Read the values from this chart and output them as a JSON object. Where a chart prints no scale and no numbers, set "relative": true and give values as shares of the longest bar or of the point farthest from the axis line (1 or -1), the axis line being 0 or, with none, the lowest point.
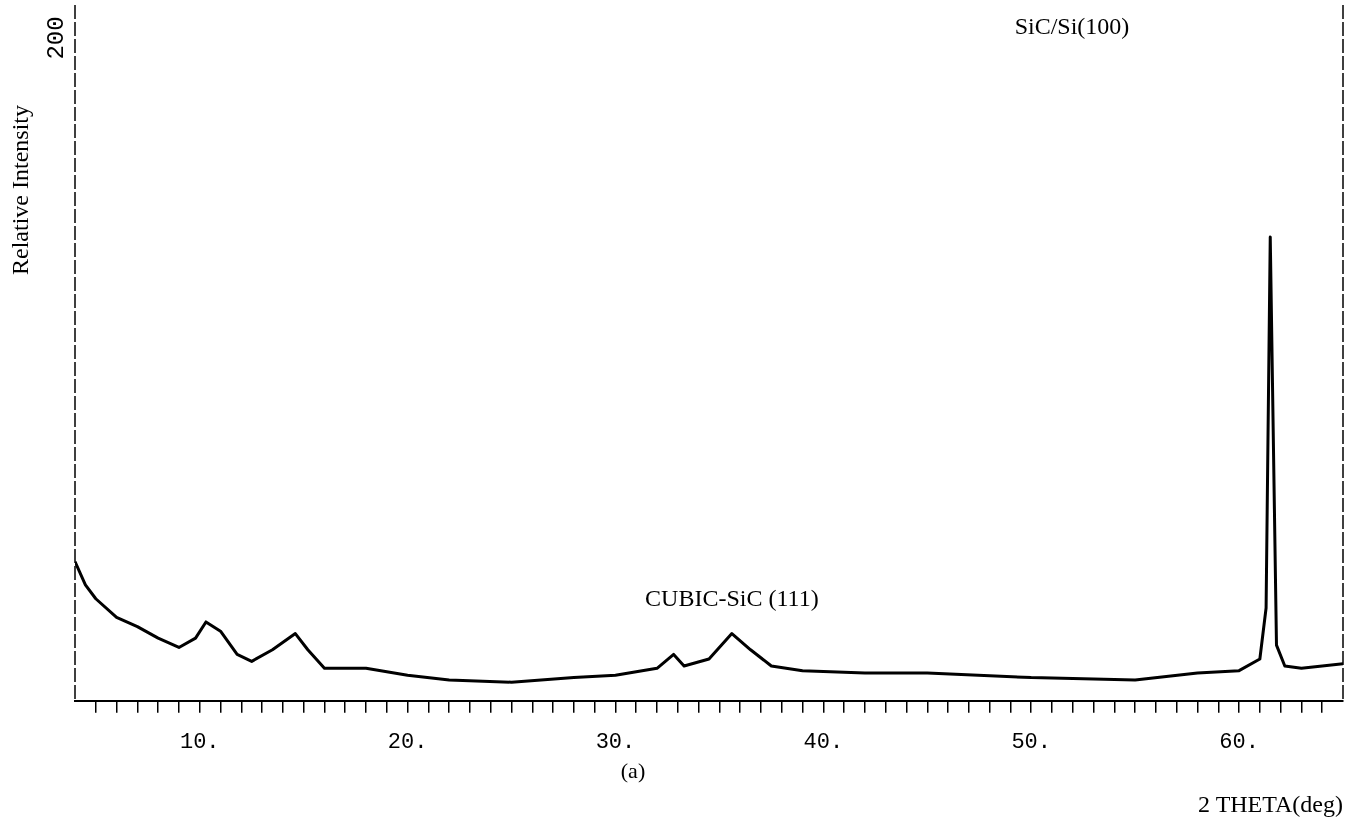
{
  "chart_data": {
    "type": "line",
    "relative": true,
    "xlabel": "2 THETA(deg)",
    "ylabel": "Relative Intensity",
    "annotations": [
      "SiC/Si(100)",
      {
        "text": "CUBIC-SiC (111)",
        "x": 35.6,
        "y": 0.145
      },
      "(a)",
      "200"
    ],
    "xlim": [
      4,
      65
    ],
    "xticks": [
      {
        "value": 5,
        "label": null
      },
      {
        "value": 6,
        "label": null
      },
      {
        "value": 7,
        "label": null
      },
      {
        "value": 8,
        "label": null
      },
      {
        "value": 9,
        "label": null
      },
      {
        "value": 10,
        "label": "10."
      },
      {
        "value": 11,
        "label": null
      },
      {
        "value": 12,
        "label": null
      },
      {
        "value": 13,
        "label": null
      },
      {
        "value": 14,
        "label": null
      },
      {
        "value": 15,
        "label": null
      },
      {
        "value": 16,
        "label": null
      },
      {
        "value": 17,
        "label": null
      },
      {
        "value": 18,
        "label": null
      },
      {
        "value": 19,
        "label": null
      },
      {
        "value": 20,
        "label": "20."
      },
      {
        "value": 21,
        "label": null
      },
      {
        "value": 22,
        "label": null
      },
      {
        "value": 23,
        "label": null
      },
      {
        "value": 24,
        "label": null
      },
      {
        "value": 25,
        "label": null
      },
      {
        "value": 26,
        "label": null
      },
      {
        "value": 27,
        "label": null
      },
      {
        "value": 28,
        "label": null
      },
      {
        "value": 29,
        "label": null
      },
      {
        "value": 30,
        "label": "30."
      },
      {
        "value": 31,
        "label": null
      },
      {
        "value": 32,
        "label": null
      },
      {
        "value": 33,
        "label": null
      },
      {
        "value": 34,
        "label": null
      },
      {
        "value": 35,
        "label": null
      },
      {
        "value": 36,
        "label": null
      },
      {
        "value": 37,
        "label": null
      },
      {
        "value": 38,
        "label": null
      },
      {
        "value": 39,
        "label": null
      },
      {
        "value": 40,
        "label": "40."
      },
      {
        "value": 41,
        "label": null
      },
      {
        "value": 42,
        "label": null
      },
      {
        "value": 43,
        "label": null
      },
      {
        "value": 44,
        "label": null
      },
      {
        "value": 45,
        "label": null
      },
      {
        "value": 46,
        "label": null
      },
      {
        "value": 47,
        "label": null
      },
      {
        "value": 48,
        "label": null
      },
      {
        "value": 49,
        "label": null
      },
      {
        "value": 50,
        "label": "50."
      },
      {
        "value": 51,
        "label": null
      },
      {
        "value": 52,
        "label": null
      },
      {
        "value": 53,
        "label": null
      },
      {
        "value": 54,
        "label": null
      },
      {
        "value": 55,
        "label": null
      },
      {
        "value": 56,
        "label": null
      },
      {
        "value": 57,
        "label": null
      },
      {
        "value": 58,
        "label": null
      },
      {
        "value": 59,
        "label": null
      },
      {
        "value": 60,
        "label": "60."
      },
      {
        "value": 61,
        "label": null
      },
      {
        "value": 62,
        "label": null
      },
      {
        "value": 63,
        "label": null
      },
      {
        "value": 64,
        "label": null
      }
    ],
    "x": [
      4,
      4.5,
      5,
      6,
      7,
      8,
      9,
      9.8,
      10.3,
      11,
      11.8,
      12.5,
      13.5,
      14.6,
      15.2,
      16,
      18,
      20,
      22,
      25,
      28,
      30,
      32,
      32.8,
      33.3,
      34.5,
      35.6,
      36.5,
      37.5,
      39,
      42,
      45,
      50,
      55,
      58,
      60,
      61,
      61.3,
      61.5,
      61.8,
      62.2,
      63,
      65
    ],
    "series": [
      {
        "color": "#000000",
        "values": [
          0.3,
          0.25,
          0.22,
          0.18,
          0.16,
          0.135,
          0.115,
          0.135,
          0.17,
          0.15,
          0.1,
          0.085,
          0.11,
          0.145,
          0.11,
          0.07,
          0.07,
          0.055,
          0.045,
          0.04,
          0.05,
          0.055,
          0.07,
          0.1,
          0.075,
          0.09,
          0.145,
          0.11,
          0.075,
          0.065,
          0.06,
          0.06,
          0.05,
          0.045,
          0.06,
          0.065,
          0.09,
          0.2,
          1.0,
          0.12,
          0.075,
          0.07,
          0.08
        ]
      }
    ],
    "grid": false,
    "marker": "none",
    "line_style": "solid"
  }
}
